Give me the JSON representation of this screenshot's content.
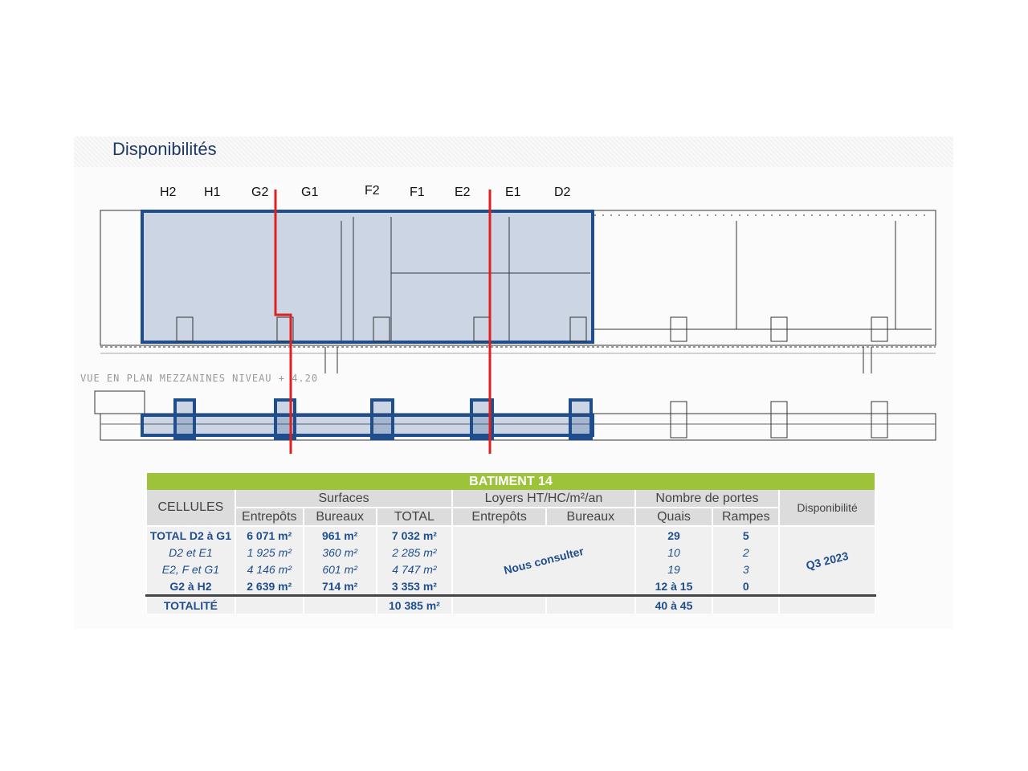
{
  "title": "Disponibilités",
  "plan": {
    "cell_labels": [
      "H2",
      "H1",
      "G2",
      "G1",
      "F2",
      "F1",
      "E2",
      "E1",
      "D2"
    ],
    "mezzanine_label": "VUE EN PLAN MEZZANINES NIVEAU + 4.20",
    "colors": {
      "highlight": "#1f4e8c",
      "divider": "#e02020"
    }
  },
  "table": {
    "building": "BATIMENT 14",
    "headers": {
      "cellules": "CELLULES",
      "surfaces": "Surfaces",
      "loyers": "Loyers HT/HC/m²/an",
      "portes": "Nombre de portes",
      "disponibilite": "Disponibilité",
      "entrepots": "Entrepôts",
      "bureaux": "Bureaux",
      "total": "TOTAL",
      "loyer_entrepots": "Entrepôts",
      "loyer_bureaux": "Bureaux",
      "quais": "Quais",
      "rampes": "Rampes"
    },
    "rows": [
      {
        "cellule": "TOTAL D2 à G1",
        "entrepots": "6 071 m²",
        "bureaux": "961 m²",
        "total": "7 032 m²",
        "quais": "29",
        "rampes": "5"
      },
      {
        "cellule": "D2 et E1",
        "entrepots": "1 925 m²",
        "bureaux": "360 m²",
        "total": "2 285 m²",
        "quais": "10",
        "rampes": "2"
      },
      {
        "cellule": "E2, F et G1",
        "entrepots": "4 146 m²",
        "bureaux": "601 m²",
        "total": "4 747 m²",
        "quais": "19",
        "rampes": "3"
      },
      {
        "cellule": "G2 à H2",
        "entrepots": "2 639 m²",
        "bureaux": "714 m²",
        "total": "3 353 m²",
        "quais": "12 à 15",
        "rampes": "0"
      }
    ],
    "loyers_note": "Nous consulter",
    "disponibilite_value": "Q3 2023",
    "totalite": {
      "label": "TOTALITÉ",
      "total": "10 385 m²",
      "quais": "40 à 45"
    },
    "colors": {
      "header_green": "#9dc33b",
      "text_blue": "#1f4e8c"
    }
  }
}
